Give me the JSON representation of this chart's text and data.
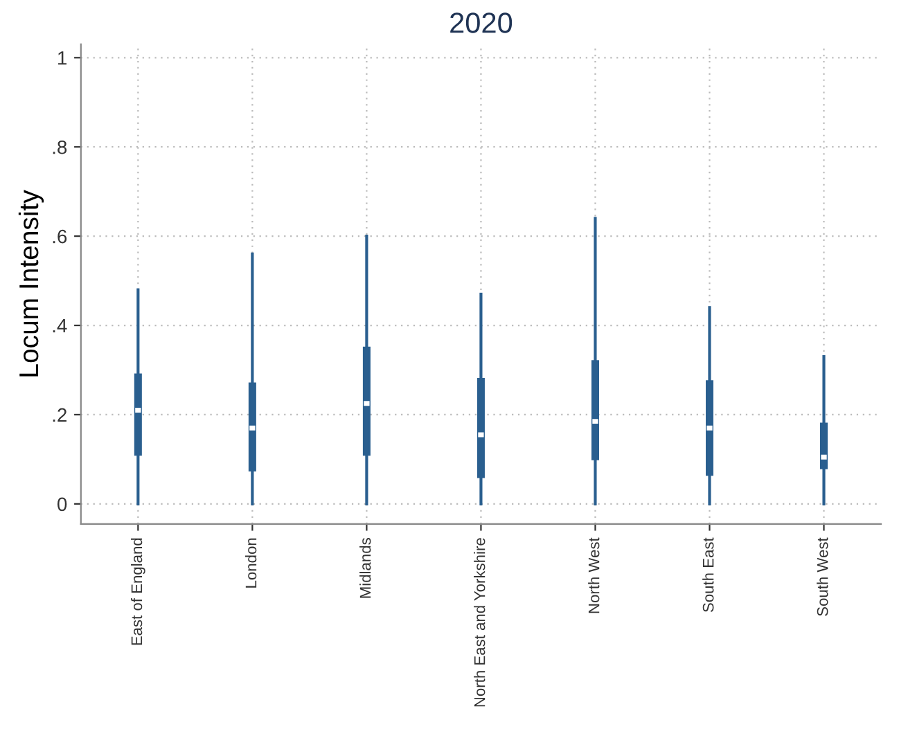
{
  "chart_data": {
    "type": "box",
    "title": "2020",
    "ylabel": "Locum Intensity",
    "categories": [
      "East of England",
      "London",
      "Midlands",
      "North East and Yorkshire",
      "North West",
      "South East",
      "South West"
    ],
    "boxes": [
      {
        "low": 0,
        "q1": 0.11,
        "median": 0.21,
        "q3": 0.29,
        "high": 0.48
      },
      {
        "low": 0,
        "q1": 0.075,
        "median": 0.17,
        "q3": 0.27,
        "high": 0.56
      },
      {
        "low": 0,
        "q1": 0.11,
        "median": 0.225,
        "q3": 0.35,
        "high": 0.6
      },
      {
        "low": 0,
        "q1": 0.06,
        "median": 0.155,
        "q3": 0.28,
        "high": 0.47
      },
      {
        "low": 0,
        "q1": 0.1,
        "median": 0.185,
        "q3": 0.32,
        "high": 0.64
      },
      {
        "low": 0,
        "q1": 0.065,
        "median": 0.17,
        "q3": 0.275,
        "high": 0.44
      },
      {
        "low": 0,
        "q1": 0.08,
        "median": 0.105,
        "q3": 0.18,
        "high": 0.33
      }
    ],
    "color": "#2a5f8f",
    "ylim": [
      -0.045,
      1.03
    ],
    "yticks": [
      {
        "value": 0,
        "label": "0"
      },
      {
        "value": 0.2,
        "label": ".2"
      },
      {
        "value": 0.4,
        "label": ".4"
      },
      {
        "value": 0.6,
        "label": ".6"
      },
      {
        "value": 0.8,
        "label": ".8"
      },
      {
        "value": 1,
        "label": "1"
      }
    ],
    "grid": true
  }
}
